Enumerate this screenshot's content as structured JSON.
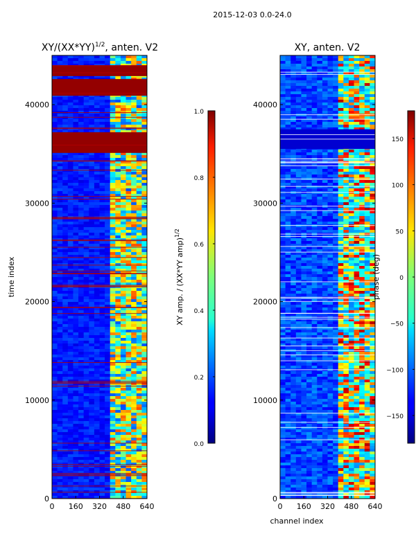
{
  "suptitle": "2015-12-03 0.0-24.0",
  "chart_data": [
    {
      "type": "heatmap",
      "title_prefix": "XY/(XX*YY)",
      "title_exponent": "1/2",
      "title_suffix": ", anten. V2",
      "xlabel": "",
      "ylabel": "time index",
      "xlim": [
        0,
        640
      ],
      "ylim": [
        0,
        45000
      ],
      "xticks": [
        0,
        160,
        320,
        480,
        640
      ],
      "yticks": [
        0,
        10000,
        20000,
        30000,
        40000
      ],
      "colormap": "jet",
      "description_bands": {
        "saturated_rows": [
          [
            35100,
            37200
          ],
          [
            42900,
            44000
          ],
          [
            40900,
            42600
          ]
        ],
        "bright_channel_range": [
          395,
          640
        ]
      },
      "colorbar": {
        "range": [
          0.0,
          1.0
        ],
        "ticks": [
          0.0,
          0.2,
          0.4,
          0.6,
          0.8,
          1.0
        ],
        "tick_labels": [
          "0.0",
          "0.2",
          "0.4",
          "0.6",
          "0.8",
          "1.0"
        ],
        "label_prefix": "XY amp. / (XX*YY amp)",
        "label_exponent": "1/2"
      }
    },
    {
      "type": "heatmap",
      "title": "XY, anten. V2",
      "xlabel": "channel index",
      "ylabel": "",
      "xlim": [
        0,
        640
      ],
      "ylim": [
        0,
        45000
      ],
      "xticks": [
        0,
        160,
        320,
        480,
        640
      ],
      "yticks": [
        0,
        10000,
        20000,
        30000,
        40000
      ],
      "colormap": "jet",
      "description_bands": {
        "dark_rows": [
          [
            35500,
            37500
          ]
        ],
        "bright_channel_range": [
          400,
          640
        ]
      },
      "colorbar": {
        "range": [
          -180,
          180
        ],
        "ticks": [
          -150,
          -100,
          -50,
          0,
          50,
          100,
          150
        ],
        "tick_labels": [
          "−150",
          "−100",
          "−50",
          "0",
          "50",
          "100",
          "150"
        ],
        "label": "phase (deg)"
      }
    }
  ]
}
